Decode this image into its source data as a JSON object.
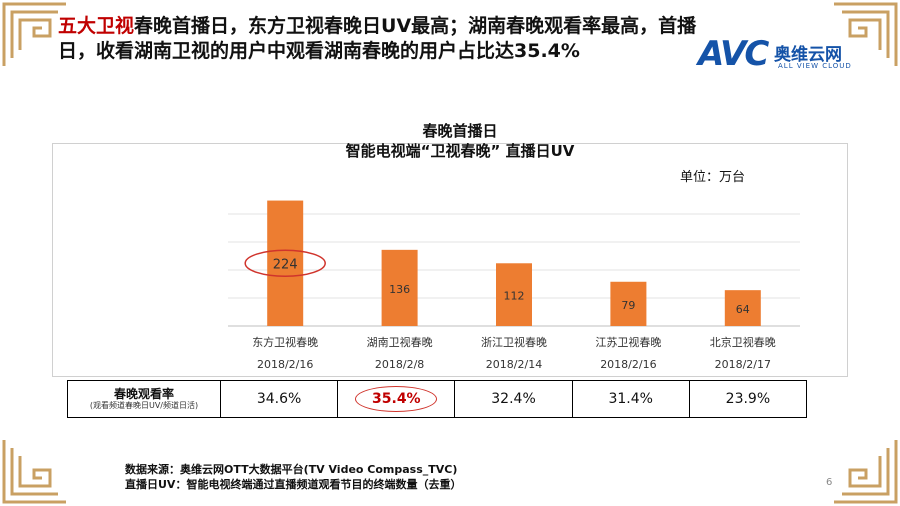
{
  "headline": {
    "accent": "五大卫视",
    "rest": "春晚首播日，东方卫视春晚日UV最高；湖南春晚观看率最高，首播日，收看湖南卫视的用户中观看湖南春晚的用户占比达35.4%"
  },
  "logo": {
    "mark": "AVC",
    "cn": "奥维云网",
    "en": "ALL VIEW CLOUD",
    "color": "#1553a8"
  },
  "unit": "单位：万台",
  "chart_data": {
    "type": "bar",
    "title": "春晚首播日",
    "subtitle": "智能电视端“卫视春晚” 直播日UV",
    "categories": [
      "东方卫视春晚",
      "湖南卫视春晚",
      "浙江卫视春晚",
      "江苏卫视春晚",
      "北京卫视春晚"
    ],
    "dates": [
      "2018/2/16",
      "2018/2/8",
      "2018/2/14",
      "2018/2/16",
      "2018/2/17"
    ],
    "values": [
      224,
      136,
      112,
      79,
      64
    ],
    "ylim": [
      0,
      250
    ],
    "grid": true,
    "bar_color": "#ed7d31",
    "highlight_index": 0
  },
  "rate_table": {
    "header": "春晚观看率",
    "header_sub": "(观看频道春晚日UV/频道日活)",
    "values": [
      "34.6%",
      "35.4%",
      "32.4%",
      "31.4%",
      "23.9%"
    ],
    "highlight_index": 1,
    "highlight_color": "#c00000"
  },
  "footnotes": [
    "数据来源：奥维云网OTT大数据平台(TV Video Compass_TVC)",
    "直播日UV：智能电视终端通过直播频道观看节目的终端数量（去重）"
  ],
  "page_number": "6",
  "decor": {
    "corner_color": "#c9a063"
  }
}
